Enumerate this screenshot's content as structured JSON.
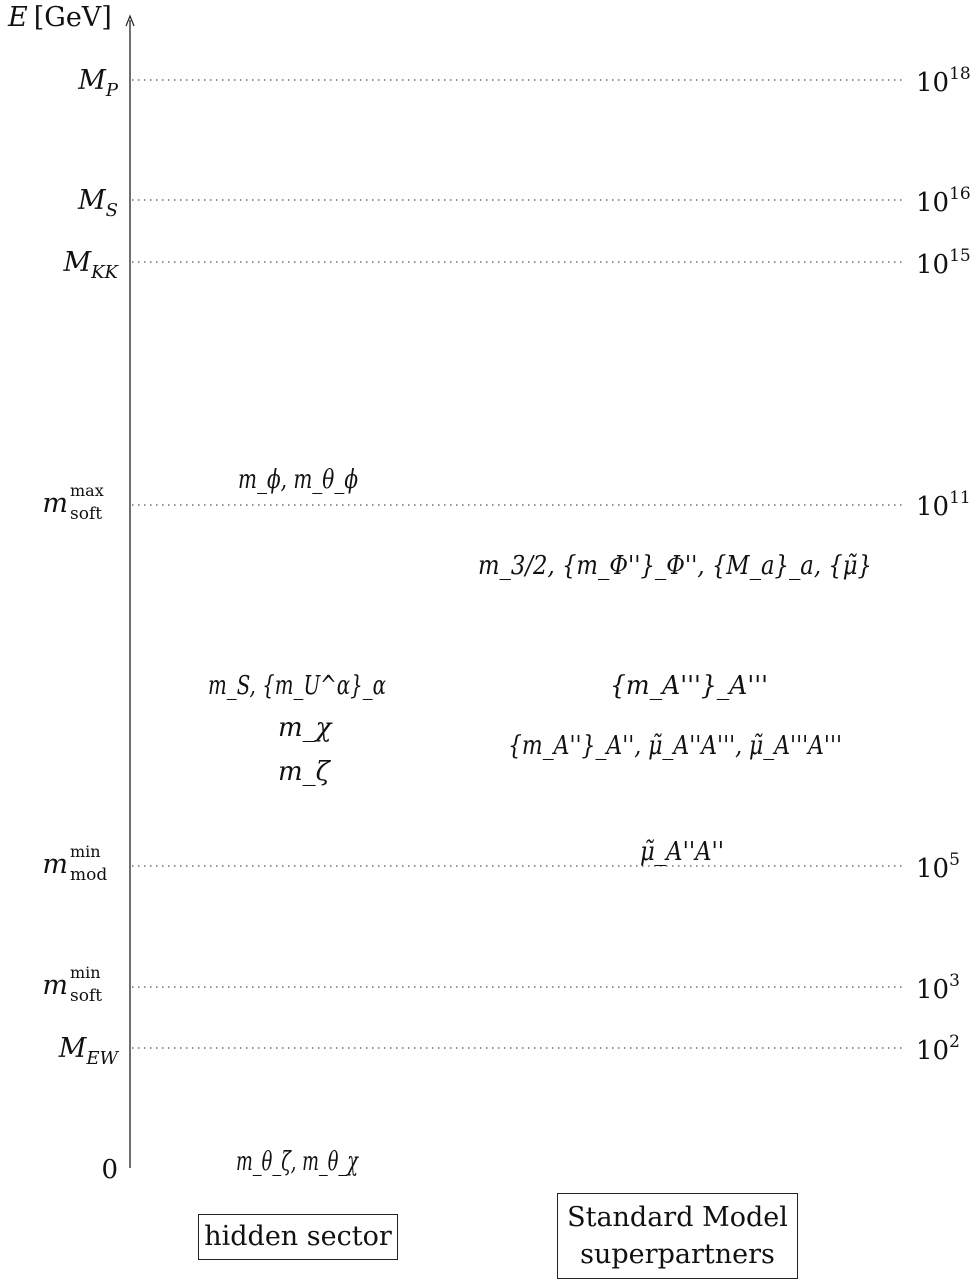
{
  "axis": {
    "label_var": "E",
    "label_unit": "[GeV]",
    "zero_label": "0"
  },
  "scales": [
    {
      "id": "MP",
      "base": "M",
      "sub": "P",
      "sup": "",
      "value": "10",
      "exp": "18"
    },
    {
      "id": "MS",
      "base": "M",
      "sub": "S",
      "sup": "",
      "value": "10",
      "exp": "16"
    },
    {
      "id": "MKK",
      "base": "M",
      "sub": "KK",
      "sup": "",
      "value": "10",
      "exp": "15"
    },
    {
      "id": "msoftmax",
      "base": "m",
      "sub": "soft",
      "sup": "max",
      "value": "10",
      "exp": "11"
    },
    {
      "id": "mmodmin",
      "base": "m",
      "sub": "mod",
      "sup": "min",
      "value": "10",
      "exp": "5"
    },
    {
      "id": "msoftmin",
      "base": "m",
      "sub": "soft",
      "sup": "min",
      "value": "10",
      "exp": "3"
    },
    {
      "id": "MEW",
      "base": "M",
      "sub": "EW",
      "sup": "",
      "value": "10",
      "exp": "2"
    }
  ],
  "hidden_sector": {
    "label": "hidden sector",
    "entries": [
      "m_ϕ, m_θ_ϕ",
      "m_S, {m_U^α}_α",
      "m_χ",
      "m_ζ",
      "m_θ_ζ, m_θ_χ"
    ]
  },
  "sm_superpartners": {
    "label_line1": "Standard Model",
    "label_line2": "superpartners",
    "entries": [
      "m_3/2, {m_Φ''}_Φ'', {M_a}_a, {μ̃}",
      "{m_A'''}_A'''",
      "{m_A''}_A'', μ̃_A''A''', μ̃_A'''A'''",
      "μ̃_A''A''"
    ]
  }
}
